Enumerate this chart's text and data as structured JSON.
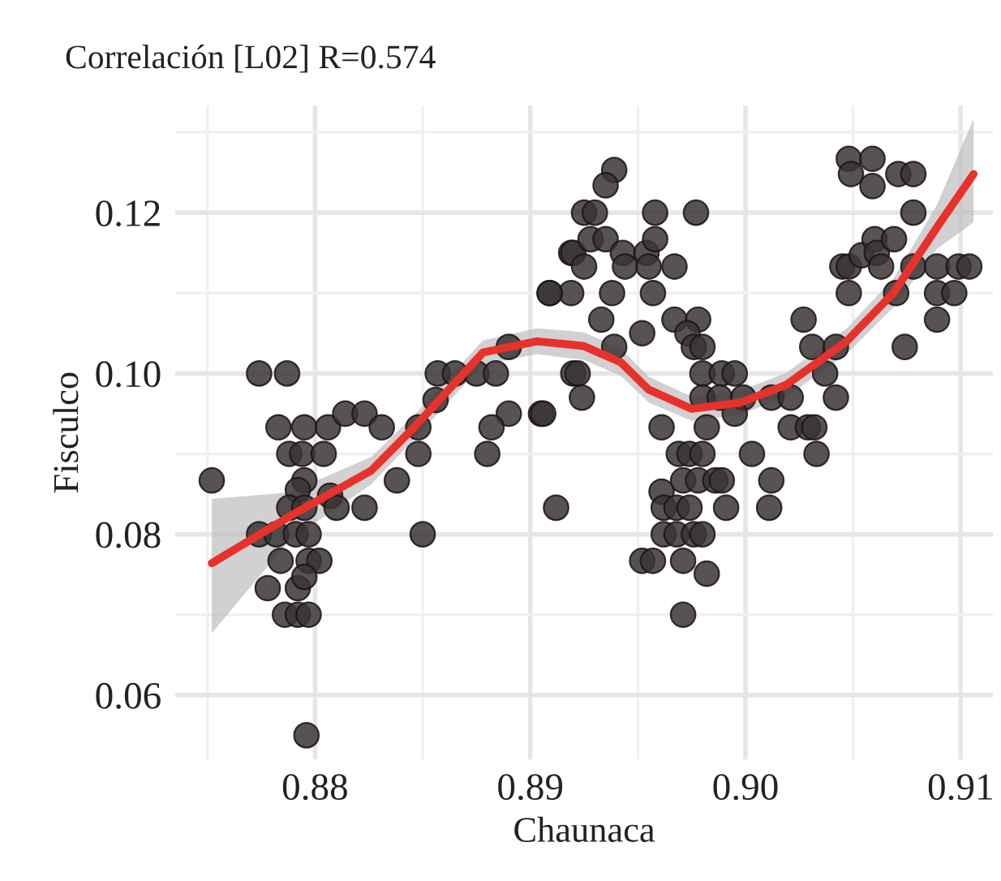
{
  "chart_data": {
    "type": "scatter",
    "title": "Correlación [L02] R=0.574",
    "xlabel": "Chaunaca",
    "ylabel": "Fisculco",
    "xlim": [
      0.8735,
      0.9115
    ],
    "ylim": [
      0.052,
      0.1333
    ],
    "xticks": [
      {
        "value": 0.875,
        "label": null
      },
      0.88,
      {
        "value": 0.885,
        "label": null
      },
      0.89,
      {
        "value": 0.895,
        "label": null
      },
      {
        "value": 0.9,
        "label": "0.90"
      },
      {
        "value": 0.905,
        "label": null
      },
      0.91
    ],
    "yticks": [
      0.06,
      {
        "value": 0.07,
        "label": null
      },
      0.08,
      {
        "value": 0.09,
        "label": null
      },
      {
        "value": 0.1,
        "label": "0.10"
      },
      {
        "value": 0.11,
        "label": null
      },
      0.12,
      {
        "value": 0.13,
        "label": null
      }
    ],
    "grid": true,
    "series": [
      {
        "color": "#3b3434",
        "marker": "circle",
        "x": [
          0.8774,
          0.8787,
          0.8783,
          0.8795,
          0.8806,
          0.8814,
          0.8823,
          0.8831,
          0.8788,
          0.8794,
          0.8804,
          0.8857,
          0.8865,
          0.8875,
          0.8884,
          0.889,
          0.8856,
          0.8848,
          0.889,
          0.8882,
          0.8905,
          0.888,
          0.8909,
          0.8919,
          0.8919,
          0.8925,
          0.892,
          0.8848,
          0.8939,
          0.8935,
          0.893,
          0.8958,
          0.8977,
          0.892,
          0.8928,
          0.8935,
          0.8943,
          0.8954,
          0.8958,
          0.8967,
          0.8925,
          0.8944,
          0.8955,
          0.8909,
          0.8938,
          0.8957,
          0.8933,
          0.8952,
          0.8939,
          0.8967,
          0.8978,
          0.8973,
          0.8976,
          0.898,
          0.8922,
          0.8924,
          0.8906,
          0.898,
          0.8989,
          0.8995,
          0.898,
          0.8988,
          0.8999,
          0.9012,
          0.9021,
          0.8961,
          0.8982,
          0.8995,
          0.9021,
          0.9029,
          0.9032,
          0.8969,
          0.8974,
          0.898,
          0.9003,
          0.9033,
          0.9027,
          0.9031,
          0.9042,
          0.9037,
          0.9042,
          0.9048,
          0.9059,
          0.9049,
          0.9059,
          0.9071,
          0.9078,
          0.9078,
          0.9045,
          0.9048,
          0.9054,
          0.906,
          0.9061,
          0.9069,
          0.9063,
          0.9078,
          0.9089,
          0.9099,
          0.9104,
          0.9048,
          0.907,
          0.9089,
          0.9097,
          0.9089,
          0.9074,
          0.8752,
          0.8795,
          0.8792,
          0.8788,
          0.8795,
          0.8807,
          0.881,
          0.8823,
          0.8838,
          0.8774,
          0.8782,
          0.8791,
          0.8797,
          0.885,
          0.8784,
          0.8797,
          0.8802,
          0.8778,
          0.8792,
          0.8795,
          0.8786,
          0.8792,
          0.8797,
          0.8796,
          0.8912,
          0.8971,
          0.8978,
          0.8986,
          0.8989,
          0.9012,
          0.8961,
          0.8962,
          0.8968,
          0.8974,
          0.8991,
          0.9011,
          0.8962,
          0.8968,
          0.8976,
          0.898,
          0.8952,
          0.8957,
          0.8971,
          0.8982,
          0.8971
        ],
        "values": [
          0.1,
          0.1,
          0.0933,
          0.0933,
          0.0933,
          0.095,
          0.095,
          0.0933,
          0.09,
          0.09,
          0.09,
          0.1,
          0.1,
          0.1,
          0.1,
          0.1033,
          0.0967,
          0.0933,
          0.095,
          0.0933,
          0.095,
          0.09,
          0.11,
          0.11,
          0.115,
          0.12,
          0.1,
          0.09,
          0.1253,
          0.1234,
          0.12,
          0.12,
          0.12,
          0.115,
          0.1167,
          0.1167,
          0.115,
          0.115,
          0.1167,
          0.1133,
          0.1133,
          0.1133,
          0.1133,
          0.11,
          0.11,
          0.11,
          0.1067,
          0.105,
          0.1033,
          0.1067,
          0.1067,
          0.105,
          0.1033,
          0.1033,
          0.1,
          0.097,
          0.095,
          0.1,
          0.1,
          0.1,
          0.097,
          0.097,
          0.097,
          0.097,
          0.097,
          0.0933,
          0.0933,
          0.095,
          0.0933,
          0.0933,
          0.0933,
          0.09,
          0.09,
          0.09,
          0.09,
          0.09,
          0.1067,
          0.1033,
          0.1033,
          0.1,
          0.097,
          0.1267,
          0.1267,
          0.1248,
          0.1233,
          0.1248,
          0.1248,
          0.12,
          0.1133,
          0.1133,
          0.1147,
          0.1167,
          0.115,
          0.1167,
          0.1133,
          0.1133,
          0.1133,
          0.1133,
          0.1133,
          0.11,
          0.11,
          0.11,
          0.11,
          0.1067,
          0.1033,
          0.0867,
          0.0867,
          0.0855,
          0.0833,
          0.0833,
          0.0848,
          0.0833,
          0.0833,
          0.0867,
          0.08,
          0.08,
          0.08,
          0.08,
          0.08,
          0.0767,
          0.0767,
          0.0767,
          0.0733,
          0.0733,
          0.0747,
          0.07,
          0.07,
          0.07,
          0.055,
          0.0833,
          0.0867,
          0.0867,
          0.0867,
          0.0867,
          0.0867,
          0.0853,
          0.0833,
          0.0833,
          0.0833,
          0.0833,
          0.0833,
          0.08,
          0.08,
          0.08,
          0.08,
          0.0767,
          0.0767,
          0.0767,
          0.0751,
          0.07
        ]
      },
      {
        "type": "line",
        "color": "#e8312b",
        "line_style": "solid",
        "marker": "none",
        "x": [
          0.8752,
          0.8788,
          0.8826,
          0.8846,
          0.8878,
          0.8903,
          0.8918,
          0.8925,
          0.8942,
          0.8955,
          0.8975,
          0.8998,
          0.9019,
          0.9047,
          0.9069,
          0.9089,
          0.9106
        ],
        "values": [
          0.0764,
          0.0822,
          0.0879,
          0.0933,
          0.1026,
          0.104,
          0.1036,
          0.1034,
          0.1014,
          0.098,
          0.0956,
          0.0964,
          0.0986,
          0.104,
          0.1101,
          0.1182,
          0.1248
        ],
        "lower": [
          0.0677,
          0.0792,
          0.0862,
          0.0918,
          0.1011,
          0.1024,
          0.1019,
          0.1017,
          0.0997,
          0.0964,
          0.0941,
          0.0949,
          0.0971,
          0.1024,
          0.1083,
          0.1155,
          0.1188
        ],
        "upper": [
          0.0844,
          0.0852,
          0.0896,
          0.0948,
          0.1041,
          0.1056,
          0.1053,
          0.1051,
          0.1031,
          0.0996,
          0.0971,
          0.0979,
          0.1001,
          0.1056,
          0.1119,
          0.121,
          0.1317
        ]
      }
    ]
  }
}
